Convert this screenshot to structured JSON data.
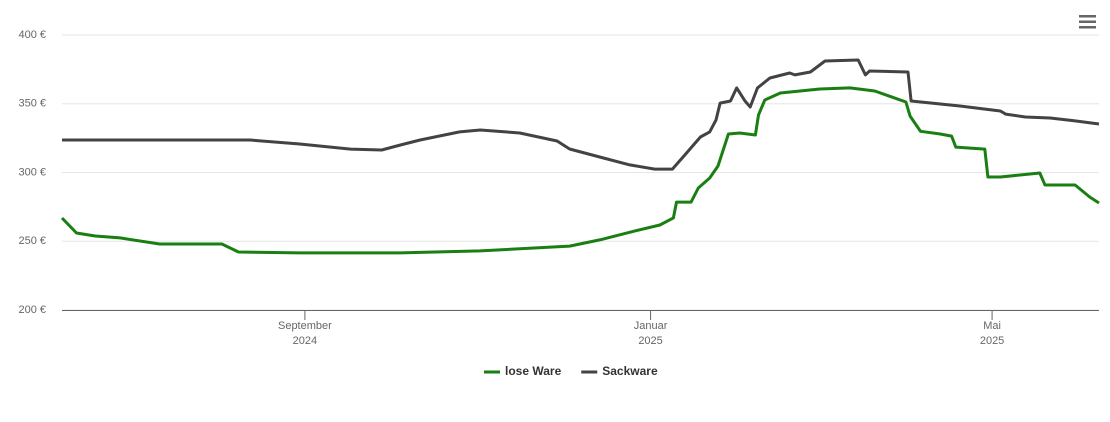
{
  "chart_data": {
    "type": "line",
    "xlim": [
      2024.433,
      2025.432
    ],
    "xticks": [
      {
        "value": 2024.667,
        "label": [
          "September",
          "2024"
        ]
      },
      {
        "value": 2025.0,
        "label": [
          "Januar",
          "2025"
        ]
      },
      {
        "value": 2025.329,
        "label": [
          "Mai",
          "2025"
        ]
      }
    ],
    "ylim": [
      200,
      400
    ],
    "yticks": [
      {
        "value": 200,
        "label": "200 €"
      },
      {
        "value": 250,
        "label": "250 €"
      },
      {
        "value": 300,
        "label": "300 €"
      },
      {
        "value": 350,
        "label": "350 €"
      },
      {
        "value": 400,
        "label": "400 €"
      }
    ],
    "grid": true,
    "legend": "bottom",
    "series": [
      {
        "name": "lose Ware",
        "color": "#1a7f12",
        "x": [
          2024.433,
          2024.447,
          2024.465,
          2024.489,
          2024.527,
          2024.587,
          2024.603,
          2024.662,
          2024.759,
          2024.836,
          2024.922,
          2024.951,
          2024.985,
          2025.009,
          2025.022,
          2025.025,
          2025.039,
          2025.046,
          2025.057,
          2025.065,
          2025.075,
          2025.086,
          2025.101,
          2025.104,
          2025.11,
          2025.125,
          2025.163,
          2025.192,
          2025.216,
          2025.246,
          2025.25,
          2025.26,
          2025.279,
          2025.29,
          2025.294,
          2025.322,
          2025.325,
          2025.337,
          2025.356,
          2025.375,
          2025.38,
          2025.409,
          2025.423,
          2025.432
        ],
        "values": [
          266.9,
          256,
          253.8,
          252.4,
          248,
          248,
          242.2,
          241.5,
          241.5,
          243,
          246.5,
          251,
          257.5,
          261.8,
          267,
          278.5,
          278.5,
          288.7,
          296,
          304.7,
          328,
          328.7,
          327.3,
          341.8,
          352.7,
          357.8,
          360.7,
          361.5,
          359.3,
          351.3,
          341,
          330,
          328,
          326.5,
          318.5,
          317,
          296.7,
          296.7,
          298.2,
          299.6,
          290.9,
          290.9,
          282.2,
          277.8
        ]
      },
      {
        "name": "Sackware",
        "color": "#434343",
        "x": [
          2024.433,
          2024.614,
          2024.662,
          2024.711,
          2024.741,
          2024.759,
          2024.778,
          2024.816,
          2024.836,
          2024.874,
          2024.91,
          2024.922,
          2024.951,
          2024.98,
          2025.004,
          2025.021,
          2025.033,
          2025.048,
          2025.057,
          2025.063,
          2025.067,
          2025.077,
          2025.083,
          2025.091,
          2025.096,
          2025.103,
          2025.115,
          2025.134,
          2025.139,
          2025.154,
          2025.168,
          2025.2,
          2025.207,
          2025.211,
          2025.248,
          2025.251,
          2025.298,
          2025.337,
          2025.342,
          2025.361,
          2025.385,
          2025.409,
          2025.432
        ],
        "values": [
          323.6,
          323.6,
          320.7,
          317,
          316.4,
          320,
          323.6,
          329.5,
          330.9,
          328.7,
          322.9,
          317.1,
          311.3,
          305.5,
          302.5,
          302.5,
          312.7,
          325.8,
          329.5,
          338.2,
          350.5,
          352,
          361.5,
          352,
          347.6,
          361.5,
          368.7,
          372.4,
          371,
          373.1,
          381.1,
          381.8,
          371,
          373.8,
          373.1,
          352,
          348.4,
          344.7,
          342.5,
          340.4,
          339.6,
          337.5,
          335.3
        ]
      }
    ]
  }
}
